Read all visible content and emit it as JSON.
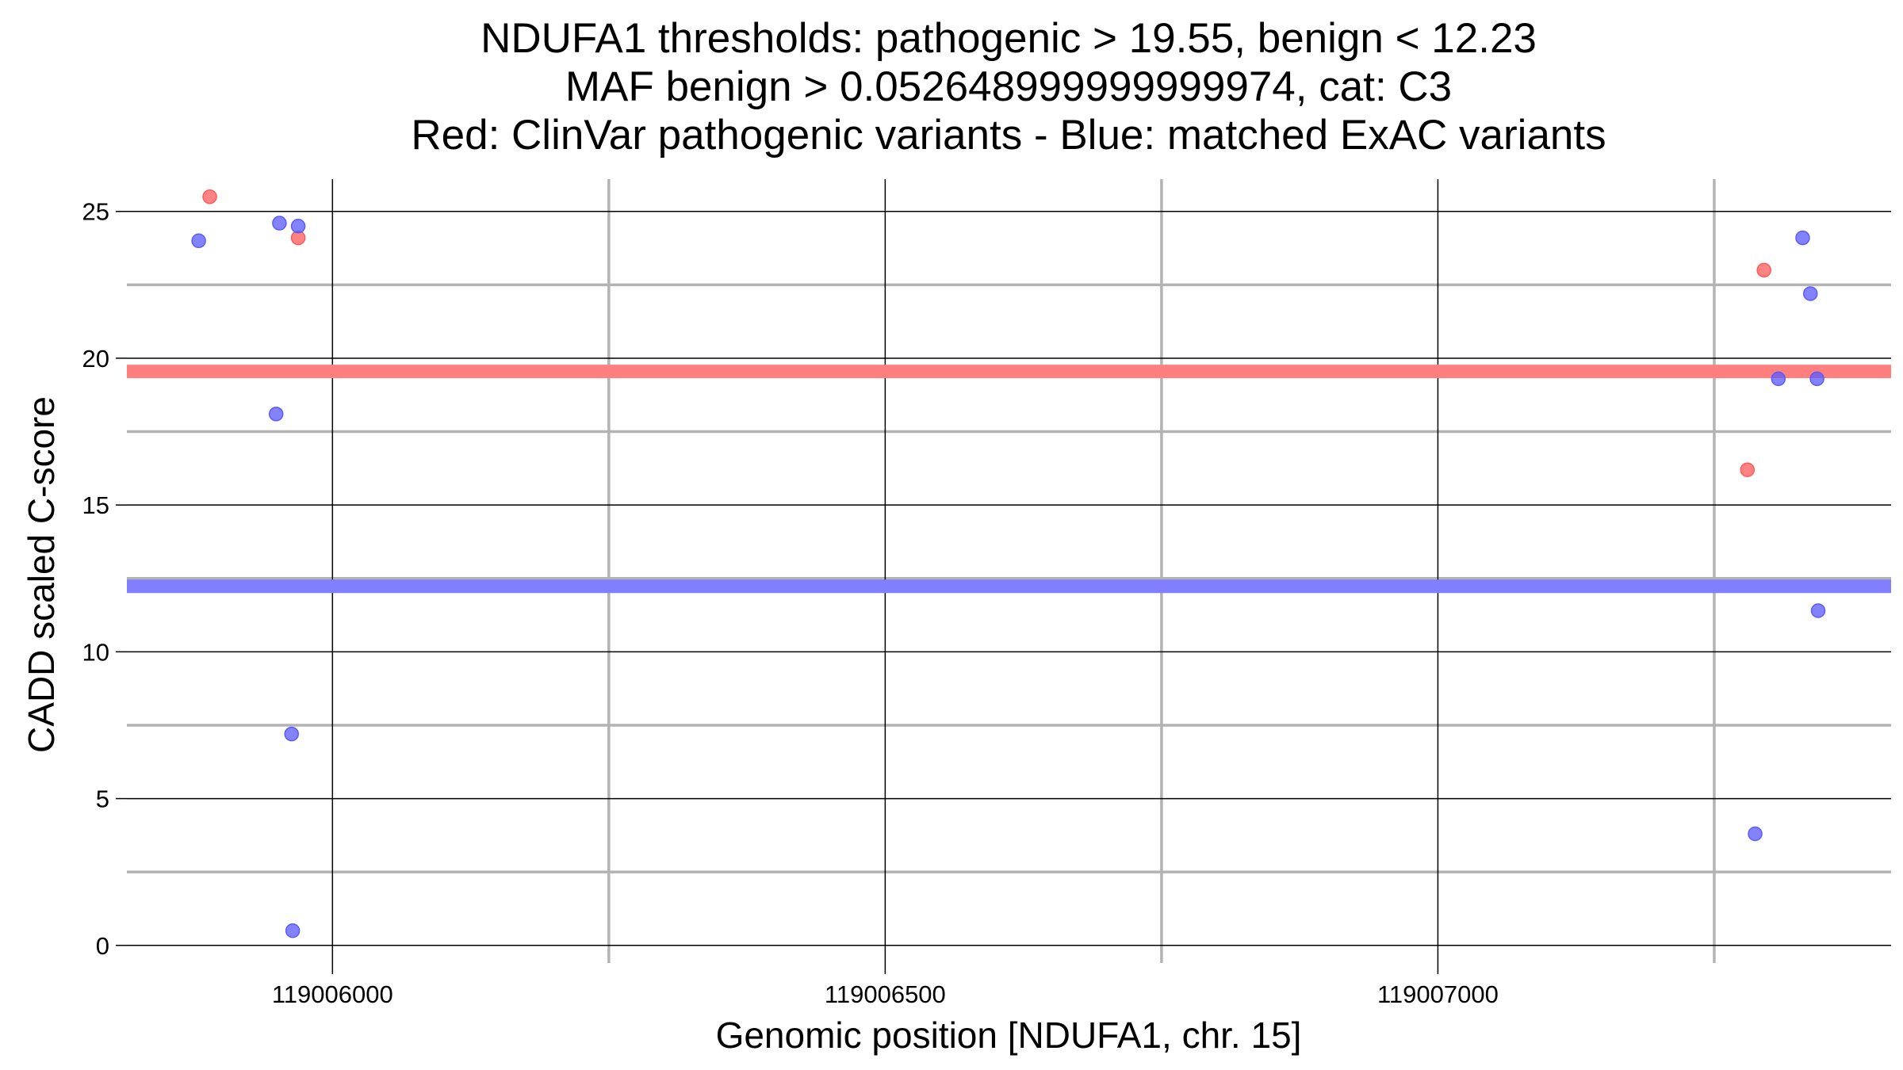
{
  "chart_data": {
    "type": "scatter",
    "title": [
      "NDUFA1 thresholds: pathogenic > 19.55, benign < 12.23",
      "MAF benign > 0.052648999999999974, cat: C3",
      "Red: ClinVar pathogenic variants - Blue: matched ExAC variants"
    ],
    "xlabel": "Genomic position [NDUFA1, chr. 15]",
    "ylabel": "CADD scaled C-score",
    "xlim": [
      119005814,
      119007410
    ],
    "ylim": [
      -0.6,
      26.1
    ],
    "x_ticks": [
      119006000,
      119006500,
      119007000
    ],
    "x_tick_labels": [
      "119006000",
      "119006500",
      "119007000"
    ],
    "x_minor_ticks": [
      119006250,
      119006750,
      119007250
    ],
    "y_ticks": [
      0,
      5,
      10,
      15,
      20,
      25
    ],
    "y_tick_labels": [
      "0",
      "5",
      "10",
      "15",
      "20",
      "25"
    ],
    "y_minor_ticks": [
      2.5,
      7.5,
      12.5,
      17.5,
      22.5
    ],
    "grid": true,
    "thresholds": [
      {
        "label": "pathogenic",
        "value": 19.55,
        "color": "#ff7f7f"
      },
      {
        "label": "benign",
        "value": 12.23,
        "color": "#7f7fff"
      }
    ],
    "series": [
      {
        "color": "#ff5a5a",
        "points": [
          {
            "x": 119005889,
            "y": 25.5
          },
          {
            "x": 119005969,
            "y": 24.1
          },
          {
            "x": 119007280,
            "y": 16.2
          },
          {
            "x": 119007295,
            "y": 23.0
          }
        ]
      },
      {
        "color": "#5a5aff",
        "points": [
          {
            "x": 119005879,
            "y": 24.0
          },
          {
            "x": 119005952,
            "y": 24.6
          },
          {
            "x": 119005969,
            "y": 24.5
          },
          {
            "x": 119005949,
            "y": 18.1
          },
          {
            "x": 119005963,
            "y": 7.2
          },
          {
            "x": 119005964,
            "y": 0.5
          },
          {
            "x": 119007287,
            "y": 3.8
          },
          {
            "x": 119007308,
            "y": 19.3
          },
          {
            "x": 119007330,
            "y": 24.1
          },
          {
            "x": 119007337,
            "y": 22.2
          },
          {
            "x": 119007343,
            "y": 19.3
          },
          {
            "x": 119007344,
            "y": 11.4
          }
        ]
      }
    ]
  }
}
